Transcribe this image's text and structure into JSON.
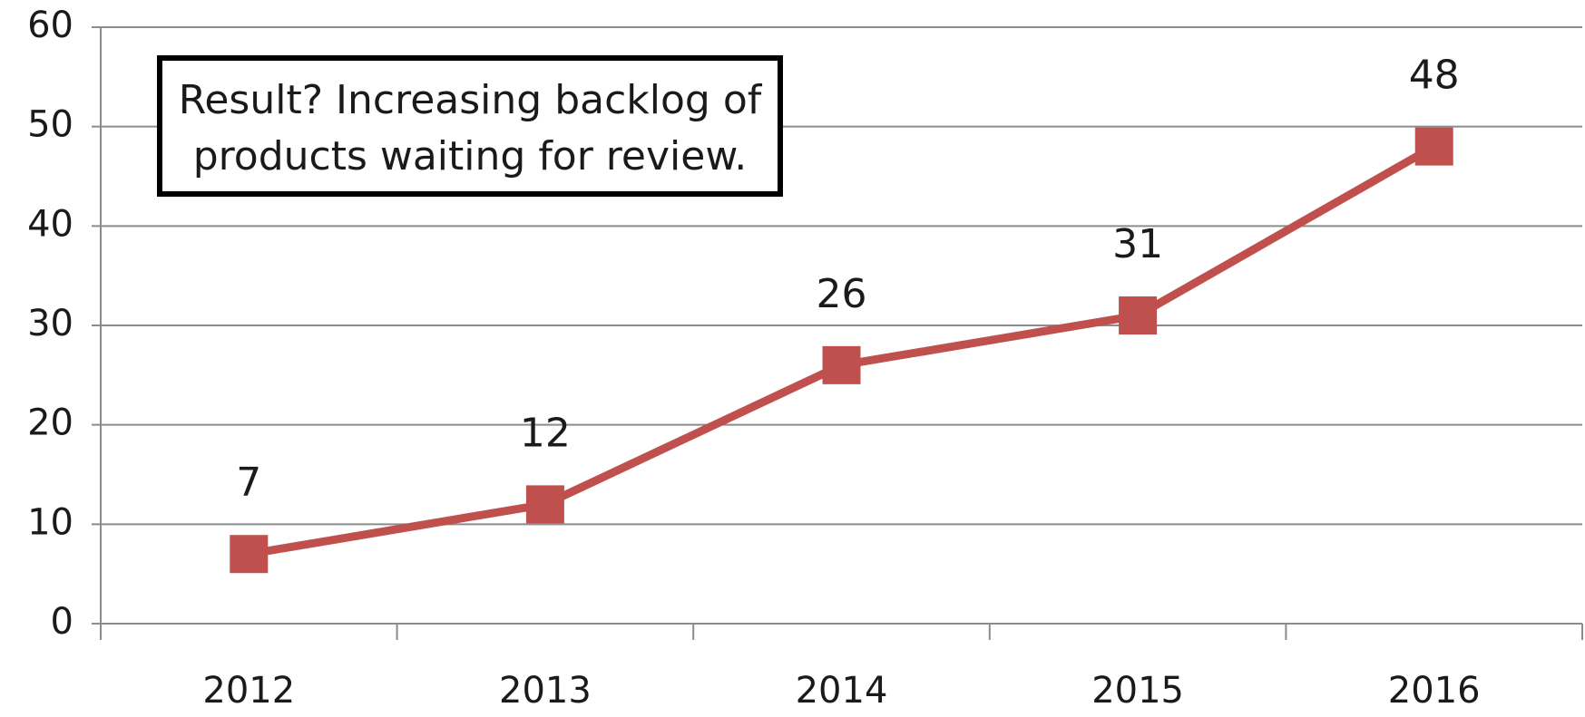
{
  "chart_data": {
    "type": "line",
    "categories": [
      "2012",
      "2013",
      "2014",
      "2015",
      "2016"
    ],
    "series": [
      {
        "color": "#c0504d",
        "values": [
          7,
          12,
          26,
          31,
          48
        ]
      }
    ],
    "ylim": [
      0,
      60
    ],
    "yticks": [
      0,
      10,
      20,
      30,
      40,
      50,
      60
    ],
    "grid": true,
    "annotation": [
      "Result? Increasing backlog of",
      "products waiting for review."
    ]
  }
}
